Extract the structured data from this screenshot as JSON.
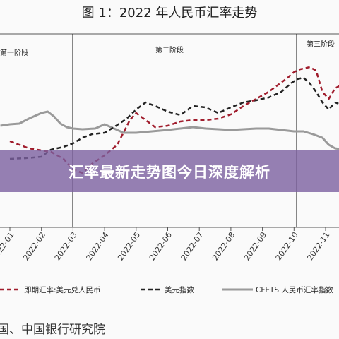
{
  "chart_data": {
    "type": "line",
    "title": "图 1：2022 年人民币汇率走势",
    "phases": [
      "第一阶段",
      "第二阶段",
      "第三阶段"
    ],
    "categories": [
      "2022-01",
      "2022-02",
      "2022-03",
      "2022-04",
      "2022-05",
      "2022-06",
      "2022-07",
      "2022-08",
      "2022-09",
      "2022-10",
      "2022-11"
    ],
    "series": [
      {
        "name": "即期汇率:美元兑人民币",
        "style": "dashed",
        "color": "#a01c2c",
        "points": [
          [
            0,
            200
          ],
          [
            0.3,
            205
          ],
          [
            0.6,
            210
          ],
          [
            1,
            213
          ],
          [
            1.3,
            215
          ],
          [
            1.7,
            225
          ],
          [
            2,
            240
          ],
          [
            2.3,
            245
          ],
          [
            2.6,
            232
          ],
          [
            3,
            220
          ],
          [
            3.4,
            205
          ],
          [
            3.8,
            170
          ],
          [
            4,
            160
          ],
          [
            4.3,
            170
          ],
          [
            4.6,
            180
          ],
          [
            5,
            178
          ],
          [
            5.4,
            172
          ],
          [
            5.8,
            170
          ],
          [
            6.2,
            170
          ],
          [
            6.6,
            168
          ],
          [
            7,
            162
          ],
          [
            7.4,
            150
          ],
          [
            7.8,
            140
          ],
          [
            8.2,
            130
          ],
          [
            8.5,
            120
          ],
          [
            8.8,
            110
          ],
          [
            9,
            102
          ],
          [
            9.2,
            98
          ],
          [
            9.5,
            95
          ],
          [
            9.7,
            100
          ],
          [
            9.9,
            130
          ],
          [
            10.1,
            140
          ],
          [
            10.3,
            125
          ],
          [
            10.6,
            118
          ],
          [
            10.8,
            125
          ],
          [
            11,
            145
          ],
          [
            11.2,
            140
          ]
        ]
      },
      {
        "name": "美元指数",
        "style": "dashed",
        "color": "#222222",
        "points": [
          [
            0,
            225
          ],
          [
            0.5,
            224
          ],
          [
            1,
            222
          ],
          [
            1.3,
            212
          ],
          [
            1.7,
            208
          ],
          [
            2,
            203
          ],
          [
            2.3,
            195
          ],
          [
            2.6,
            190
          ],
          [
            3,
            188
          ],
          [
            3.3,
            180
          ],
          [
            3.7,
            168
          ],
          [
            4,
            155
          ],
          [
            4.3,
            145
          ],
          [
            4.6,
            150
          ],
          [
            5,
            158
          ],
          [
            5.4,
            163
          ],
          [
            5.8,
            150
          ],
          [
            6.2,
            152
          ],
          [
            6.6,
            160
          ],
          [
            7,
            152
          ],
          [
            7.4,
            145
          ],
          [
            7.8,
            142
          ],
          [
            8.2,
            138
          ],
          [
            8.6,
            130
          ],
          [
            8.9,
            118
          ],
          [
            9.1,
            112
          ],
          [
            9.3,
            110
          ],
          [
            9.5,
            118
          ],
          [
            9.7,
            130
          ],
          [
            9.9,
            145
          ],
          [
            10.1,
            155
          ],
          [
            10.3,
            145
          ],
          [
            10.6,
            150
          ],
          [
            10.8,
            160
          ],
          [
            11,
            170
          ],
          [
            11.2,
            165
          ]
        ]
      },
      {
        "name": "CFETS 人民币汇率指数",
        "style": "solid",
        "color": "#9a9a9a",
        "points": [
          [
            -0.3,
            178
          ],
          [
            0,
            176
          ],
          [
            0.3,
            175
          ],
          [
            0.6,
            168
          ],
          [
            1,
            160
          ],
          [
            1.2,
            158
          ],
          [
            1.4,
            165
          ],
          [
            1.6,
            175
          ],
          [
            1.8,
            180
          ],
          [
            2,
            182
          ],
          [
            2.3,
            183
          ],
          [
            2.7,
            182
          ],
          [
            3,
            176
          ],
          [
            3.3,
            182
          ],
          [
            3.6,
            188
          ],
          [
            4,
            188
          ],
          [
            4.5,
            186
          ],
          [
            5,
            184
          ],
          [
            5.4,
            182
          ],
          [
            5.8,
            180
          ],
          [
            6.2,
            182
          ],
          [
            6.6,
            183
          ],
          [
            7,
            184
          ],
          [
            7.4,
            183
          ],
          [
            7.8,
            182
          ],
          [
            8.2,
            182
          ],
          [
            8.6,
            184
          ],
          [
            9,
            186
          ],
          [
            9.3,
            186
          ],
          [
            9.6,
            190
          ],
          [
            9.9,
            195
          ],
          [
            10.1,
            205
          ],
          [
            10.3,
            210
          ],
          [
            10.6,
            212
          ],
          [
            10.8,
            205
          ],
          [
            11,
            200
          ],
          [
            11.2,
            200
          ]
        ]
      }
    ],
    "legend_position": "bottom",
    "grid": false
  },
  "legend": [
    {
      "label": "即期汇率:美元兑人民币"
    },
    {
      "label": "美元指数"
    },
    {
      "label": "CFETS 人民币汇率指数"
    }
  ],
  "source": "国、中国银行研究院",
  "banner": {
    "text": "汇率最新走势图今日深度解析"
  },
  "colors": {
    "usd_cny": "#a01c2c",
    "dxy": "#222222",
    "cfets": "#9a9a9a",
    "banner": "#7c60a0"
  }
}
